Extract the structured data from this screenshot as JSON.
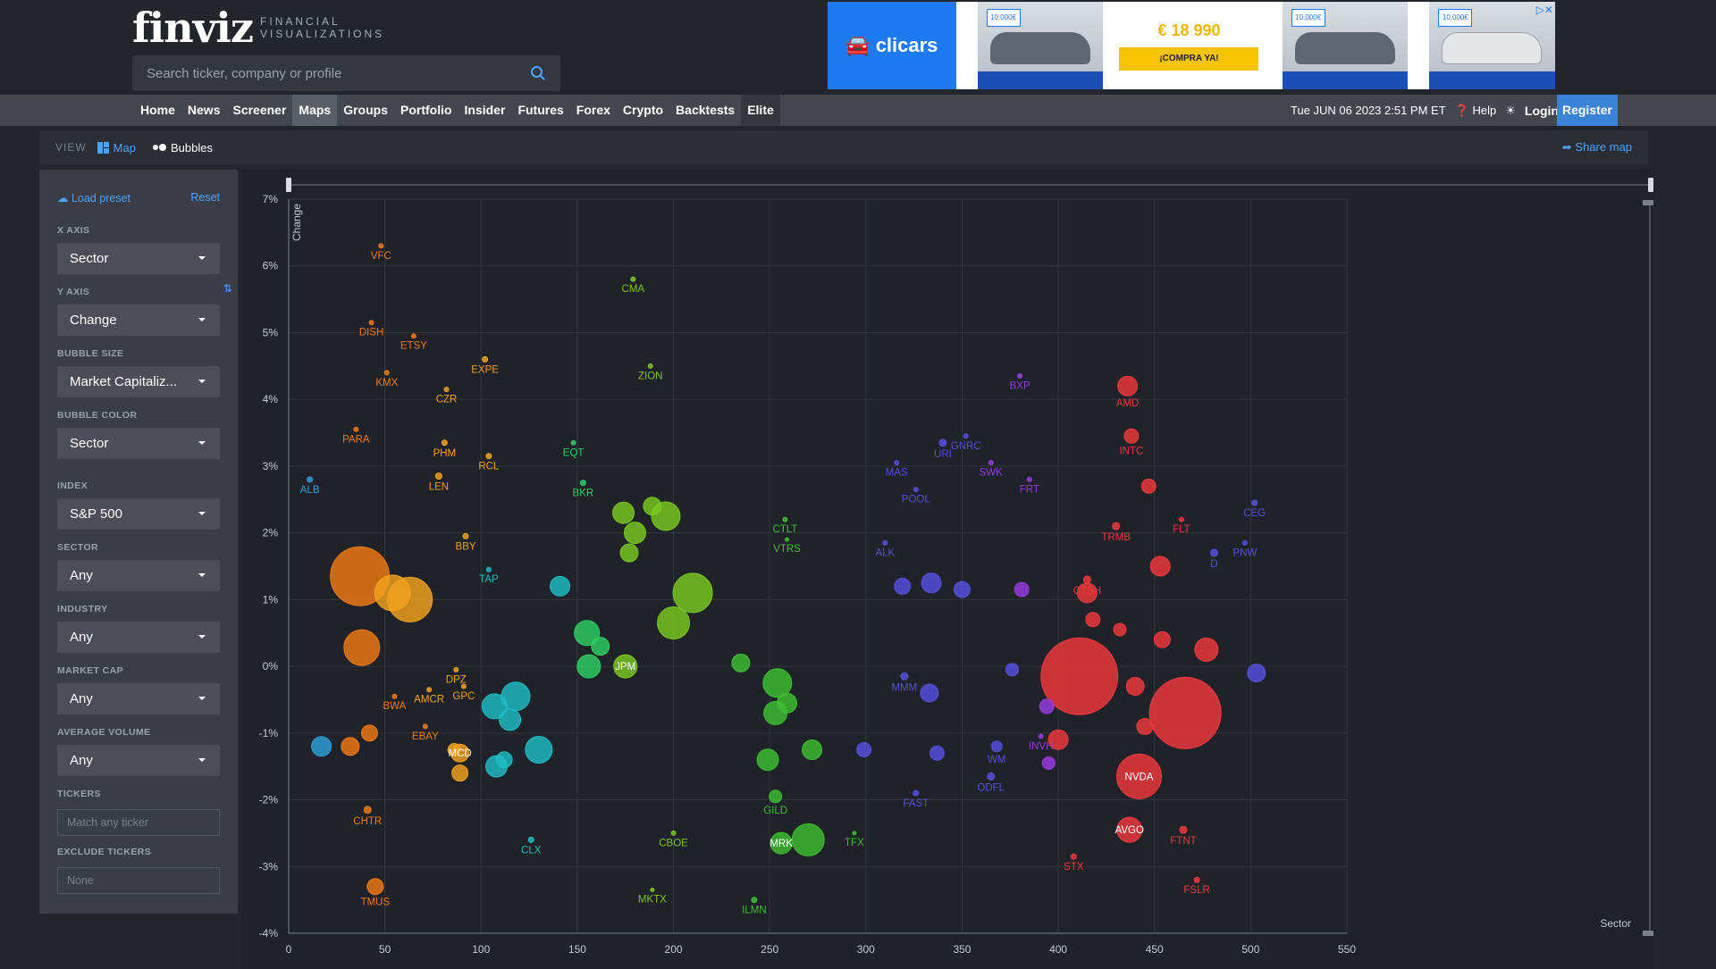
{
  "header": {
    "logo": "finviz",
    "logo_sub_1": "FINANCIAL",
    "logo_sub_2": "VISUALIZATIONS",
    "search_placeholder": "Search ticker, company or profile"
  },
  "ad": {
    "brand": "clicars",
    "price": "€ 18 990",
    "cta": "¡COMPRA YA!",
    "badge": "10.000€"
  },
  "nav": {
    "items": [
      "Home",
      "News",
      "Screener",
      "Maps",
      "Groups",
      "Portfolio",
      "Insider",
      "Futures",
      "Forex",
      "Crypto",
      "Backtests",
      "Elite"
    ],
    "active": "Maps",
    "datetime": "Tue JUN 06 2023 2:51 PM ET",
    "help": "Help",
    "login": "Login",
    "register": "Register"
  },
  "viewbar": {
    "label": "VIEW",
    "map": "Map",
    "bubbles": "Bubbles",
    "share": "Share map"
  },
  "panel": {
    "load_preset": "Load preset",
    "reset": "Reset",
    "x_axis_label": "X AXIS",
    "x_axis_value": "Sector",
    "y_axis_label": "Y AXIS",
    "y_axis_value": "Change",
    "bubble_size_label": "BUBBLE SIZE",
    "bubble_size_value": "Market Capitaliz...",
    "bubble_color_label": "BUBBLE COLOR",
    "bubble_color_value": "Sector",
    "index_label": "INDEX",
    "index_value": "S&P 500",
    "sector_label": "SECTOR",
    "sector_value": "Any",
    "industry_label": "INDUSTRY",
    "industry_value": "Any",
    "market_cap_label": "MARKET CAP",
    "market_cap_value": "Any",
    "avg_volume_label": "AVERAGE VOLUME",
    "avg_volume_value": "Any",
    "tickers_label": "TICKERS",
    "tickers_placeholder": "Match any ticker",
    "exclude_label": "EXCLUDE TICKERS",
    "exclude_placeholder": "None"
  },
  "chart_data": {
    "type": "scatter",
    "xlabel": "Sector",
    "ylabel": "Change",
    "xlim": [
      0,
      550
    ],
    "ylim": [
      -4,
      7
    ],
    "x_ticks": [
      0,
      50,
      100,
      150,
      200,
      250,
      300,
      350,
      400,
      450,
      500,
      550
    ],
    "y_ticks": [
      "7%",
      "6%",
      "5%",
      "4%",
      "3%",
      "2%",
      "1%",
      "0%",
      "-1%",
      "-2%",
      "-3%",
      "-4%"
    ],
    "y_tick_values": [
      7,
      6,
      5,
      4,
      3,
      2,
      1,
      0,
      -1,
      -2,
      -3,
      -4
    ],
    "grid": true,
    "colors": {
      "blue": "#2f9fd8",
      "orange": "#f07a12",
      "amber": "#f2a21d",
      "teal": "#1fbcc4",
      "green": "#2ecf65",
      "lime": "#7ac81e",
      "greenMid": "#3dbf2f",
      "indigo": "#5650e0",
      "violet": "#9a3ae0",
      "red": "#f0383c"
    },
    "points": [
      {
        "label": "VFC",
        "x": 48,
        "y": 6.3,
        "r": 2.5,
        "c": "orange"
      },
      {
        "label": "CMA",
        "x": 179,
        "y": 5.8,
        "r": 2.5,
        "c": "lime"
      },
      {
        "label": "DISH",
        "x": 43,
        "y": 5.15,
        "r": 2.5,
        "c": "orange"
      },
      {
        "label": "ETSY",
        "x": 65,
        "y": 4.95,
        "r": 2.5,
        "c": "orange"
      },
      {
        "label": "EXPE",
        "x": 102,
        "y": 4.6,
        "r": 3,
        "c": "amber"
      },
      {
        "label": "ZION",
        "x": 188,
        "y": 4.5,
        "r": 2.5,
        "c": "lime"
      },
      {
        "label": "KMX",
        "x": 51,
        "y": 4.4,
        "r": 2.5,
        "c": "orange"
      },
      {
        "label": "CZR",
        "x": 82,
        "y": 4.15,
        "r": 2.5,
        "c": "amber"
      },
      {
        "label": "BXP",
        "x": 380,
        "y": 4.35,
        "r": 2.5,
        "c": "violet"
      },
      {
        "label": "AMD",
        "x": 436,
        "y": 4.2,
        "r": 11,
        "c": "red"
      },
      {
        "label": "PARA",
        "x": 35,
        "y": 3.55,
        "r": 2.5,
        "c": "orange"
      },
      {
        "label": "PHM",
        "x": 81,
        "y": 3.35,
        "r": 3,
        "c": "amber"
      },
      {
        "label": "RCL",
        "x": 104,
        "y": 3.15,
        "r": 3,
        "c": "amber"
      },
      {
        "label": "EQT",
        "x": 148,
        "y": 3.35,
        "r": 2.5,
        "c": "green"
      },
      {
        "label": "INTC",
        "x": 438,
        "y": 3.45,
        "r": 8,
        "c": "red"
      },
      {
        "label": "MAS",
        "x": 316,
        "y": 3.05,
        "r": 2.5,
        "c": "indigo"
      },
      {
        "label": "URI",
        "x": 340,
        "y": 3.35,
        "r": 4,
        "c": "indigo"
      },
      {
        "label": "GNRC",
        "x": 352,
        "y": 3.45,
        "r": 2.5,
        "c": "indigo"
      },
      {
        "label": "SWK",
        "x": 365,
        "y": 3.05,
        "r": 2.5,
        "c": "violet"
      },
      {
        "label": "ALB",
        "x": 11,
        "y": 2.8,
        "r": 3,
        "c": "blue"
      },
      {
        "label": "LEN",
        "x": 78,
        "y": 2.85,
        "r": 3.5,
        "c": "amber"
      },
      {
        "label": "BKR",
        "x": 153,
        "y": 2.75,
        "r": 3,
        "c": "green"
      },
      {
        "label": "FRT",
        "x": 385,
        "y": 2.8,
        "r": 2.5,
        "c": "violet"
      },
      {
        "label": "POOL",
        "x": 326,
        "y": 2.65,
        "r": 2.5,
        "c": "indigo"
      },
      {
        "label": "CEG",
        "x": 502,
        "y": 2.45,
        "r": 3,
        "c": "indigo"
      },
      {
        "label": "CTLT",
        "x": 258,
        "y": 2.2,
        "r": 2.5,
        "c": "greenMid"
      },
      {
        "label": "TRMB",
        "x": 430,
        "y": 2.1,
        "r": 4,
        "c": "red"
      },
      {
        "label": "FLT",
        "x": 464,
        "y": 2.2,
        "r": 2.5,
        "c": "red"
      },
      {
        "label": "BBY",
        "x": 92,
        "y": 1.95,
        "r": 3,
        "c": "amber"
      },
      {
        "label": "ALK",
        "x": 310,
        "y": 1.85,
        "r": 2.5,
        "c": "indigo"
      },
      {
        "label": "VTRS",
        "x": 259,
        "y": 1.9,
        "r": 2,
        "c": "greenMid"
      },
      {
        "label": "PNW",
        "x": 497,
        "y": 1.85,
        "r": 2.5,
        "c": "indigo"
      },
      {
        "label": "D",
        "x": 481,
        "y": 1.7,
        "r": 4,
        "c": "indigo"
      },
      {
        "label": "TAP",
        "x": 104,
        "y": 1.45,
        "r": 2.5,
        "c": "teal"
      },
      {
        "label": "CTSH",
        "x": 415,
        "y": 1.3,
        "r": 4,
        "c": "red"
      },
      {
        "label": "DPZ",
        "x": 87,
        "y": -0.05,
        "r": 2.5,
        "c": "amber"
      },
      {
        "label": "GPC",
        "x": 91,
        "y": -0.3,
        "r": 2.5,
        "c": "amber"
      },
      {
        "label": "JPM",
        "x": 175,
        "y": 0.0,
        "r": 13,
        "c": "lime",
        "inside": true
      },
      {
        "label": "AMCR",
        "x": 73,
        "y": -0.35,
        "r": 2.5,
        "c": "amber"
      },
      {
        "label": "BWA",
        "x": 55,
        "y": -0.45,
        "r": 2.5,
        "c": "orange"
      },
      {
        "label": "EBAY",
        "x": 71,
        "y": -0.9,
        "r": 2.5,
        "c": "orange"
      },
      {
        "label": "MMM",
        "x": 320,
        "y": -0.15,
        "r": 4,
        "c": "indigo"
      },
      {
        "label": "MCD",
        "x": 89,
        "y": -1.3,
        "r": 10,
        "c": "amber",
        "inside": true
      },
      {
        "label": "WM",
        "x": 368,
        "y": -1.2,
        "r": 6,
        "c": "indigo"
      },
      {
        "label": "INVH",
        "x": 391,
        "y": -1.05,
        "r": 2.5,
        "c": "violet"
      },
      {
        "label": "ODFL",
        "x": 365,
        "y": -1.65,
        "r": 4,
        "c": "indigo"
      },
      {
        "label": "NVDA",
        "x": 442,
        "y": -1.65,
        "r": 25,
        "c": "red",
        "inside": true
      },
      {
        "label": "GILD",
        "x": 253,
        "y": -1.95,
        "r": 7,
        "c": "greenMid"
      },
      {
        "label": "FAST",
        "x": 326,
        "y": -1.9,
        "r": 3,
        "c": "indigo"
      },
      {
        "label": "CHTR",
        "x": 41,
        "y": -2.15,
        "r": 4,
        "c": "orange"
      },
      {
        "label": "CLX",
        "x": 126,
        "y": -2.6,
        "r": 3,
        "c": "teal"
      },
      {
        "label": "CBOE",
        "x": 200,
        "y": -2.5,
        "r": 2.5,
        "c": "lime"
      },
      {
        "label": "AVGO",
        "x": 437,
        "y": -2.45,
        "r": 14,
        "c": "red",
        "inside": true
      },
      {
        "label": "FTNT",
        "x": 465,
        "y": -2.45,
        "r": 4,
        "c": "red"
      },
      {
        "label": "MRK",
        "x": 256,
        "y": -2.65,
        "r": 12,
        "c": "greenMid",
        "inside": true
      },
      {
        "label": "TFX",
        "x": 294,
        "y": -2.5,
        "r": 2,
        "c": "greenMid"
      },
      {
        "label": "STX",
        "x": 408,
        "y": -2.85,
        "r": 3,
        "c": "red"
      },
      {
        "label": "TMUS",
        "x": 45,
        "y": -3.3,
        "r": 9,
        "c": "orange"
      },
      {
        "label": "MKTX",
        "x": 189,
        "y": -3.35,
        "r": 2,
        "c": "lime"
      },
      {
        "label": "ILMN",
        "x": 242,
        "y": -3.5,
        "r": 3,
        "c": "greenMid"
      },
      {
        "label": "FSLR",
        "x": 472,
        "y": -3.2,
        "r": 3,
        "c": "red"
      },
      {
        "label": "",
        "x": 37,
        "y": 1.35,
        "r": 33,
        "c": "orange"
      },
      {
        "label": "",
        "x": 54,
        "y": 1.1,
        "r": 20,
        "c": "amber"
      },
      {
        "label": "",
        "x": 63,
        "y": 1.0,
        "r": 25,
        "c": "amber"
      },
      {
        "label": "",
        "x": 38,
        "y": 0.28,
        "r": 20,
        "c": "orange"
      },
      {
        "label": "",
        "x": 32,
        "y": -1.2,
        "r": 10,
        "c": "orange"
      },
      {
        "label": "",
        "x": 42,
        "y": -1.0,
        "r": 9,
        "c": "orange"
      },
      {
        "label": "",
        "x": 17,
        "y": -1.2,
        "r": 11,
        "c": "blue"
      },
      {
        "label": "",
        "x": 411,
        "y": -0.15,
        "r": 43,
        "c": "red"
      },
      {
        "label": "",
        "x": 466,
        "y": -0.7,
        "r": 40,
        "c": "red"
      },
      {
        "label": "",
        "x": 210,
        "y": 1.1,
        "r": 22,
        "c": "lime"
      },
      {
        "label": "",
        "x": 200,
        "y": 0.65,
        "r": 18,
        "c": "lime"
      },
      {
        "label": "",
        "x": 196,
        "y": 2.25,
        "r": 16,
        "c": "lime"
      },
      {
        "label": "",
        "x": 180,
        "y": 2.0,
        "r": 12,
        "c": "lime"
      },
      {
        "label": "",
        "x": 174,
        "y": 2.3,
        "r": 12,
        "c": "lime"
      },
      {
        "label": "",
        "x": 189,
        "y": 2.4,
        "r": 10,
        "c": "lime"
      },
      {
        "label": "",
        "x": 177,
        "y": 1.7,
        "r": 10,
        "c": "lime"
      },
      {
        "label": "",
        "x": 235,
        "y": 0.05,
        "r": 10,
        "c": "greenMid"
      },
      {
        "label": "",
        "x": 254,
        "y": -0.25,
        "r": 16,
        "c": "greenMid"
      },
      {
        "label": "",
        "x": 253,
        "y": -0.7,
        "r": 13,
        "c": "greenMid"
      },
      {
        "label": "",
        "x": 259,
        "y": -0.55,
        "r": 11,
        "c": "greenMid"
      },
      {
        "label": "",
        "x": 249,
        "y": -1.4,
        "r": 12,
        "c": "greenMid"
      },
      {
        "label": "",
        "x": 270,
        "y": -2.6,
        "r": 18,
        "c": "greenMid"
      },
      {
        "label": "",
        "x": 272,
        "y": -1.25,
        "r": 11,
        "c": "greenMid"
      },
      {
        "label": "",
        "x": 155,
        "y": 0.5,
        "r": 14,
        "c": "green"
      },
      {
        "label": "",
        "x": 156,
        "y": 0.0,
        "r": 13,
        "c": "green"
      },
      {
        "label": "",
        "x": 162,
        "y": 0.3,
        "r": 10,
        "c": "green"
      },
      {
        "label": "",
        "x": 118,
        "y": -0.45,
        "r": 16,
        "c": "teal"
      },
      {
        "label": "",
        "x": 107,
        "y": -0.6,
        "r": 14,
        "c": "teal"
      },
      {
        "label": "",
        "x": 115,
        "y": -0.8,
        "r": 12,
        "c": "teal"
      },
      {
        "label": "",
        "x": 130,
        "y": -1.25,
        "r": 15,
        "c": "teal"
      },
      {
        "label": "",
        "x": 108,
        "y": -1.5,
        "r": 12,
        "c": "teal"
      },
      {
        "label": "",
        "x": 112,
        "y": -1.4,
        "r": 9,
        "c": "teal"
      },
      {
        "label": "",
        "x": 141,
        "y": 1.2,
        "r": 11,
        "c": "teal"
      },
      {
        "label": "",
        "x": 89,
        "y": -1.6,
        "r": 9,
        "c": "amber"
      },
      {
        "label": "",
        "x": 86,
        "y": -1.25,
        "r": 7,
        "c": "amber"
      },
      {
        "label": "",
        "x": 319,
        "y": 1.2,
        "r": 9,
        "c": "indigo"
      },
      {
        "label": "",
        "x": 334,
        "y": 1.25,
        "r": 11,
        "c": "indigo"
      },
      {
        "label": "",
        "x": 350,
        "y": 1.15,
        "r": 9,
        "c": "indigo"
      },
      {
        "label": "",
        "x": 333,
        "y": -0.4,
        "r": 10,
        "c": "indigo"
      },
      {
        "label": "",
        "x": 299,
        "y": -1.25,
        "r": 8,
        "c": "indigo"
      },
      {
        "label": "",
        "x": 376,
        "y": -0.05,
        "r": 7,
        "c": "indigo"
      },
      {
        "label": "",
        "x": 503,
        "y": -0.1,
        "r": 10,
        "c": "indigo"
      },
      {
        "label": "",
        "x": 337,
        "y": -1.3,
        "r": 8,
        "c": "indigo"
      },
      {
        "label": "",
        "x": 381,
        "y": 1.15,
        "r": 8,
        "c": "violet"
      },
      {
        "label": "",
        "x": 394,
        "y": -0.6,
        "r": 8,
        "c": "violet"
      },
      {
        "label": "",
        "x": 395,
        "y": -1.45,
        "r": 7,
        "c": "violet"
      },
      {
        "label": "",
        "x": 440,
        "y": -0.3,
        "r": 10,
        "c": "red"
      },
      {
        "label": "",
        "x": 453,
        "y": 1.5,
        "r": 11,
        "c": "red"
      },
      {
        "label": "",
        "x": 447,
        "y": 2.7,
        "r": 8,
        "c": "red"
      },
      {
        "label": "",
        "x": 477,
        "y": 0.25,
        "r": 13,
        "c": "red"
      },
      {
        "label": "",
        "x": 400,
        "y": -1.1,
        "r": 11,
        "c": "red"
      },
      {
        "label": "",
        "x": 445,
        "y": -0.9,
        "r": 9,
        "c": "red"
      },
      {
        "label": "",
        "x": 454,
        "y": 0.4,
        "r": 9,
        "c": "red"
      },
      {
        "label": "",
        "x": 415,
        "y": 1.1,
        "r": 11,
        "c": "red"
      },
      {
        "label": "",
        "x": 432,
        "y": 0.55,
        "r": 7,
        "c": "red"
      },
      {
        "label": "",
        "x": 418,
        "y": 0.7,
        "r": 8,
        "c": "red"
      }
    ]
  }
}
